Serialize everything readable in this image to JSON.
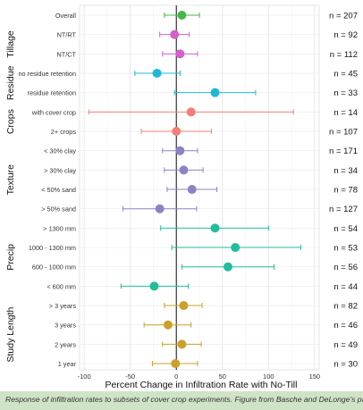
{
  "caption": "Response of infiltration rates to subsets of cover crop experiments. Figure from Basche and DeLonge's paper.",
  "chart_data": {
    "type": "scatter",
    "subtype": "forest-plot",
    "xlabel": "Percent Change in Infiltration Rate with No-Till",
    "xlim": [
      -105,
      155
    ],
    "xticks": [
      -100,
      -50,
      0,
      50,
      100,
      150
    ],
    "grid": true,
    "reference_line_x": 0,
    "groups": [
      {
        "label": "",
        "rows": [
          0
        ]
      },
      {
        "label": "Tillage",
        "rows": [
          1,
          2
        ]
      },
      {
        "label": "Residue",
        "rows": [
          3,
          4
        ]
      },
      {
        "label": "Crops",
        "rows": [
          5,
          6
        ]
      },
      {
        "label": "Texture",
        "rows": [
          7,
          8,
          9,
          10
        ]
      },
      {
        "label": "Precip",
        "rows": [
          11,
          12,
          13,
          14
        ]
      },
      {
        "label": "Study Length",
        "rows": [
          15,
          16,
          17,
          18
        ]
      }
    ],
    "rows": [
      {
        "label": "Overall",
        "n": "n = 207",
        "estimate": 6,
        "ci": [
          -13,
          25
        ],
        "color": "#49b649"
      },
      {
        "label": "NT/RT",
        "n": "n = 92",
        "estimate": -2,
        "ci": [
          -18,
          14
        ],
        "color": "#d65fc9"
      },
      {
        "label": "NT/CT",
        "n": "n = 112",
        "estimate": 4,
        "ci": [
          -15,
          23
        ],
        "color": "#d65fc9"
      },
      {
        "label": "no residue retention",
        "n": "n = 45",
        "estimate": -21,
        "ci": [
          -45,
          4
        ],
        "color": "#1fb7d9"
      },
      {
        "label": "residue retention",
        "n": "n = 33",
        "estimate": 42,
        "ci": [
          -2,
          86
        ],
        "color": "#1fb7d9"
      },
      {
        "label": "with cover crop",
        "n": "n = 14",
        "estimate": 16,
        "ci": [
          -95,
          127
        ],
        "color": "#f37f77"
      },
      {
        "label": "2+ crops",
        "n": "n = 107",
        "estimate": 0,
        "ci": [
          -38,
          38
        ],
        "color": "#f37f77"
      },
      {
        "label": "< 30% clay",
        "n": "n = 171",
        "estimate": 4,
        "ci": [
          -15,
          23
        ],
        "color": "#8c83c6"
      },
      {
        "label": "> 30% clay",
        "n": "n = 34",
        "estimate": 8,
        "ci": [
          -13,
          29
        ],
        "color": "#8c83c6"
      },
      {
        "label": "< 50% sand",
        "n": "n = 78",
        "estimate": 17,
        "ci": [
          -10,
          44
        ],
        "color": "#8c83c6"
      },
      {
        "label": "> 50% sand",
        "n": "n = 127",
        "estimate": -18,
        "ci": [
          -58,
          22
        ],
        "color": "#8c83c6"
      },
      {
        "label": "> 1300 mm",
        "n": "n = 54",
        "estimate": 42,
        "ci": [
          -17,
          100
        ],
        "color": "#20be9b"
      },
      {
        "label": "1000 - 1300 mm",
        "n": "n = 53",
        "estimate": 64,
        "ci": [
          -5,
          135
        ],
        "color": "#20be9b"
      },
      {
        "label": "600 - 1000 mm",
        "n": "n = 56",
        "estimate": 56,
        "ci": [
          6,
          106
        ],
        "color": "#20be9b"
      },
      {
        "label": "< 600 mm",
        "n": "n = 44",
        "estimate": -24,
        "ci": [
          -60,
          13
        ],
        "color": "#20be9b"
      },
      {
        "label": "> 3 years",
        "n": "n = 82",
        "estimate": 8,
        "ci": [
          -13,
          28
        ],
        "color": "#c9a12c"
      },
      {
        "label": "3 years",
        "n": "n = 46",
        "estimate": -9,
        "ci": [
          -35,
          16
        ],
        "color": "#c9a12c"
      },
      {
        "label": "2 years",
        "n": "n = 49",
        "estimate": 6,
        "ci": [
          -15,
          27
        ],
        "color": "#c9a12c"
      },
      {
        "label": "1 year",
        "n": "n = 30",
        "estimate": -1,
        "ci": [
          -26,
          23
        ],
        "color": "#c9a12c"
      }
    ]
  }
}
